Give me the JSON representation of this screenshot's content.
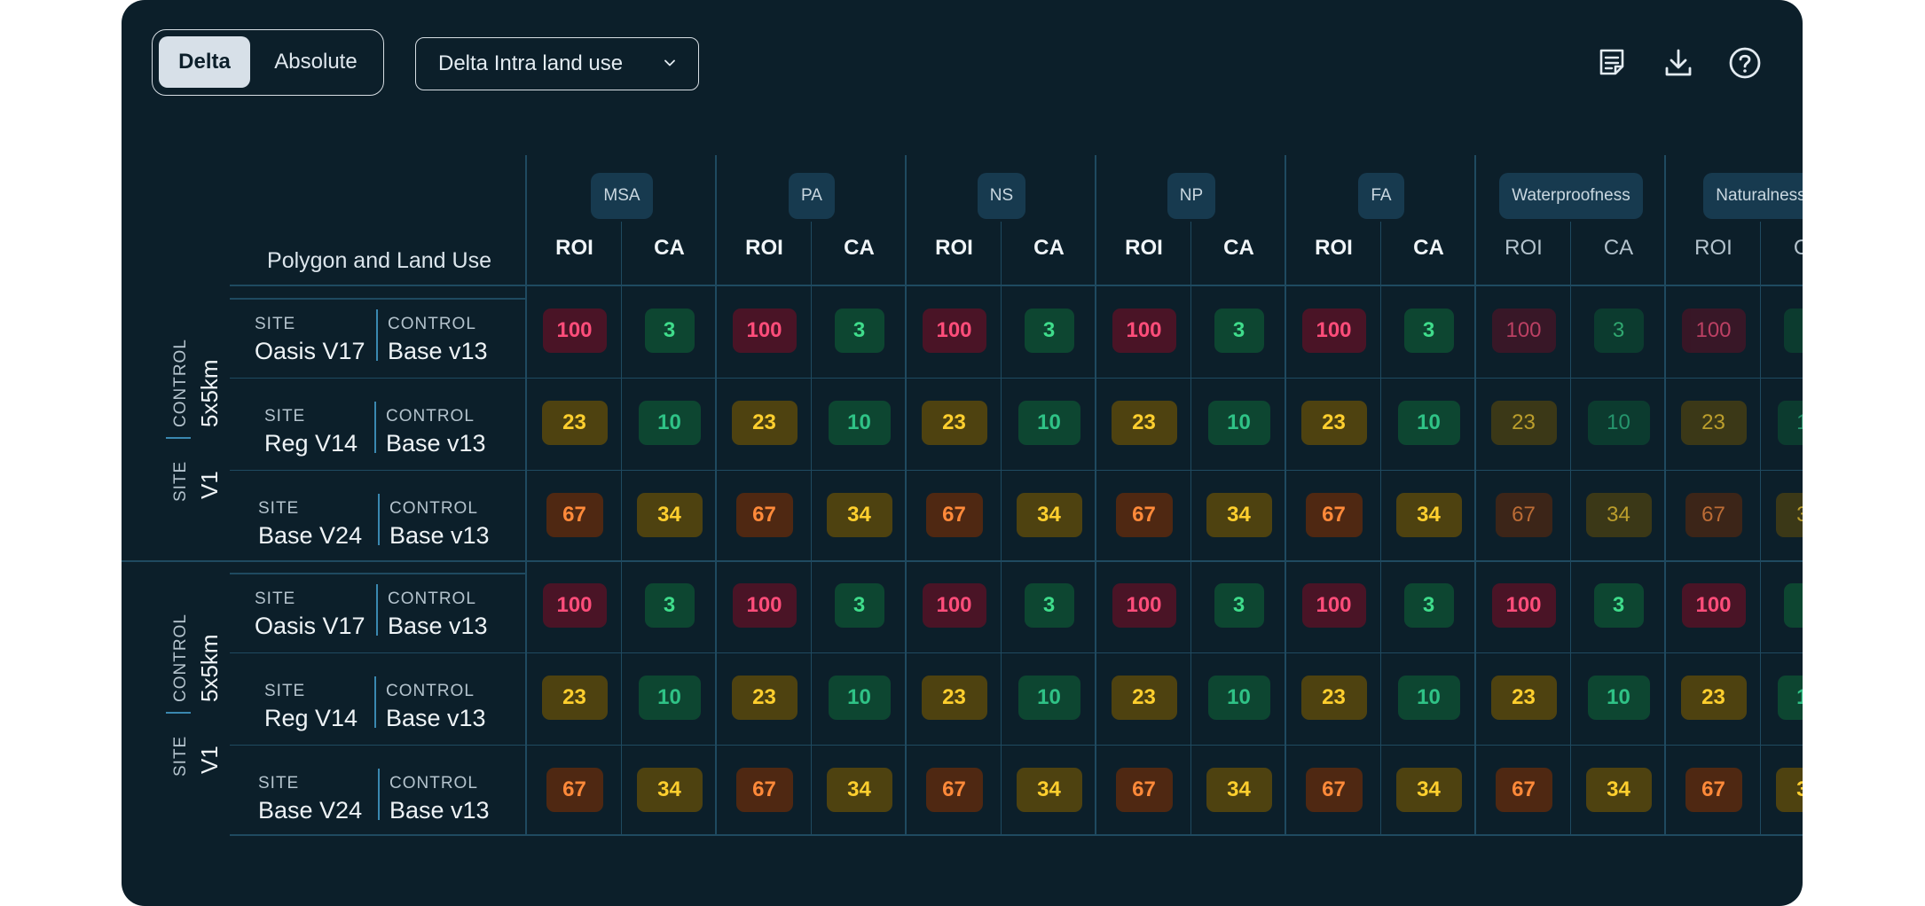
{
  "toggle": {
    "active": "Delta",
    "inactive": "Absolute"
  },
  "dropdown": {
    "label": "Delta Intra land use"
  },
  "toolbar": {
    "notes_icon": "notes-icon",
    "download_icon": "download-icon",
    "help_icon": "help-icon"
  },
  "table": {
    "corner_header": "Polygon and Land Use",
    "metric_groups": [
      "MSA",
      "PA",
      "NS",
      "NP",
      "FA",
      "Waterproofness",
      "Naturalness"
    ],
    "sub_columns": [
      "ROI",
      "CA"
    ],
    "groups": [
      {
        "site_key": "SITE",
        "site_value": "V1",
        "control_key": "CONTROL",
        "control_value": "5x5km",
        "rows": [
          {
            "site_key": "SITE",
            "site": "Oasis V17",
            "control_key": "CONTROL",
            "control": "Base v13",
            "roi": "100",
            "ca": "3"
          },
          {
            "site_key": "SITE",
            "site": "Reg V14",
            "control_key": "CONTROL",
            "control": "Base v13",
            "roi": "23",
            "ca": "10"
          },
          {
            "site_key": "SITE",
            "site": "Base V24",
            "control_key": "CONTROL",
            "control": "Base v13",
            "roi": "67",
            "ca": "34"
          }
        ]
      },
      {
        "site_key": "SITE",
        "site_value": "V1",
        "control_key": "CONTROL",
        "control_value": "5x5km",
        "rows": [
          {
            "site_key": "SITE",
            "site": "Oasis V17",
            "control_key": "CONTROL",
            "control": "Base v13",
            "roi": "100",
            "ca": "3"
          },
          {
            "site_key": "SITE",
            "site": "Reg V14",
            "control_key": "CONTROL",
            "control": "Base v13",
            "roi": "23",
            "ca": "10"
          },
          {
            "site_key": "SITE",
            "site": "Base V24",
            "control_key": "CONTROL",
            "control": "Base v13",
            "roi": "67",
            "ca": "34"
          }
        ]
      }
    ]
  },
  "colors": {
    "panel": "#0c1f2a",
    "red": "#ff4d7a",
    "green": "#3fdc8b",
    "yellow": "#ffcf2e",
    "orange": "#ff8a3a"
  }
}
